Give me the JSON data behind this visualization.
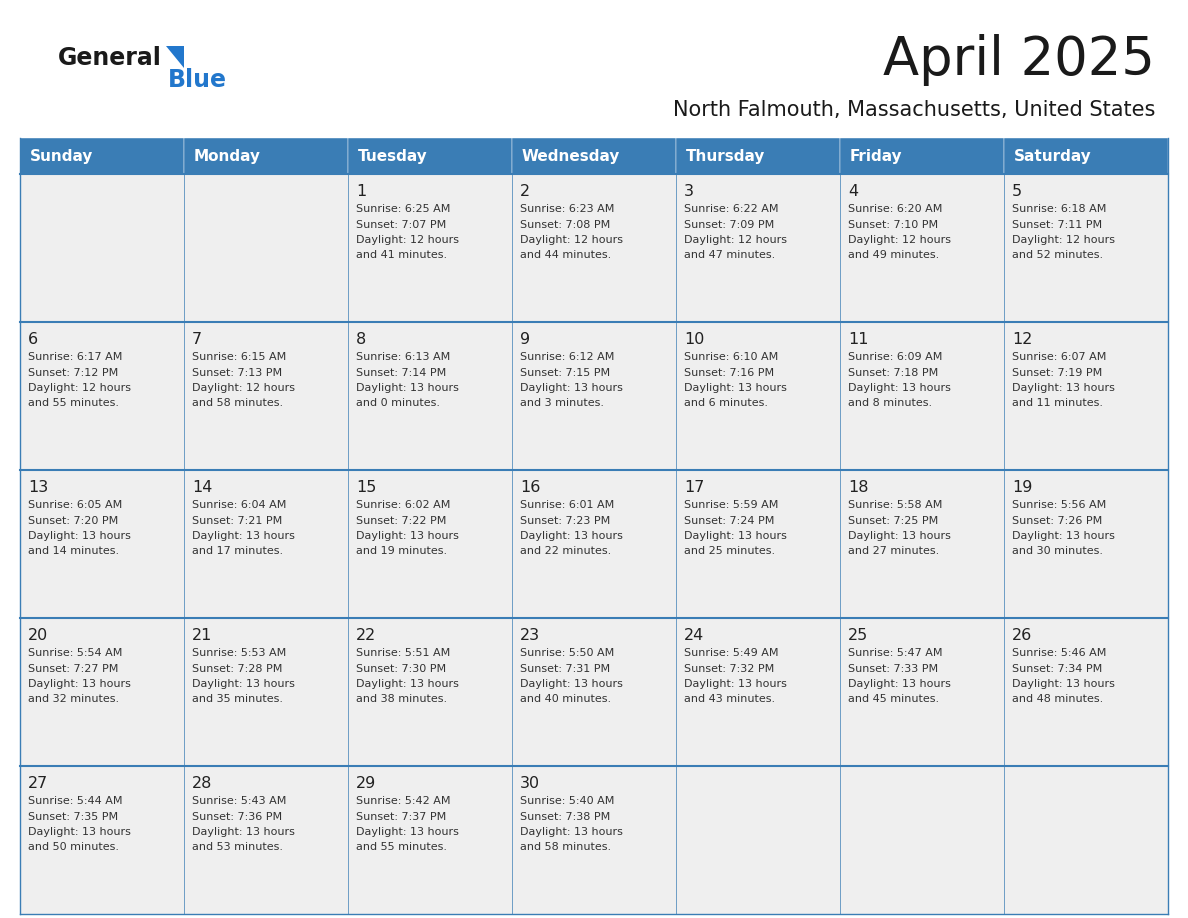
{
  "title": "April 2025",
  "subtitle": "North Falmouth, Massachusetts, United States",
  "header_bg_color": "#3a7db5",
  "header_text_color": "#ffffff",
  "day_names": [
    "Sunday",
    "Monday",
    "Tuesday",
    "Wednesday",
    "Thursday",
    "Friday",
    "Saturday"
  ],
  "cell_bg_color": "#efefef",
  "cell_border_color": "#3a7db5",
  "day_num_color": "#222222",
  "cell_text_color": "#333333",
  "title_color": "#1a1a1a",
  "subtitle_color": "#1a1a1a",
  "logo_general_color": "#1a1a1a",
  "logo_blue_color": "#2277cc",
  "weeks": [
    {
      "days": [
        {
          "date": null,
          "info": null
        },
        {
          "date": null,
          "info": null
        },
        {
          "date": "1",
          "info": "Sunrise: 6:25 AM\nSunset: 7:07 PM\nDaylight: 12 hours\nand 41 minutes."
        },
        {
          "date": "2",
          "info": "Sunrise: 6:23 AM\nSunset: 7:08 PM\nDaylight: 12 hours\nand 44 minutes."
        },
        {
          "date": "3",
          "info": "Sunrise: 6:22 AM\nSunset: 7:09 PM\nDaylight: 12 hours\nand 47 minutes."
        },
        {
          "date": "4",
          "info": "Sunrise: 6:20 AM\nSunset: 7:10 PM\nDaylight: 12 hours\nand 49 minutes."
        },
        {
          "date": "5",
          "info": "Sunrise: 6:18 AM\nSunset: 7:11 PM\nDaylight: 12 hours\nand 52 minutes."
        }
      ]
    },
    {
      "days": [
        {
          "date": "6",
          "info": "Sunrise: 6:17 AM\nSunset: 7:12 PM\nDaylight: 12 hours\nand 55 minutes."
        },
        {
          "date": "7",
          "info": "Sunrise: 6:15 AM\nSunset: 7:13 PM\nDaylight: 12 hours\nand 58 minutes."
        },
        {
          "date": "8",
          "info": "Sunrise: 6:13 AM\nSunset: 7:14 PM\nDaylight: 13 hours\nand 0 minutes."
        },
        {
          "date": "9",
          "info": "Sunrise: 6:12 AM\nSunset: 7:15 PM\nDaylight: 13 hours\nand 3 minutes."
        },
        {
          "date": "10",
          "info": "Sunrise: 6:10 AM\nSunset: 7:16 PM\nDaylight: 13 hours\nand 6 minutes."
        },
        {
          "date": "11",
          "info": "Sunrise: 6:09 AM\nSunset: 7:18 PM\nDaylight: 13 hours\nand 8 minutes."
        },
        {
          "date": "12",
          "info": "Sunrise: 6:07 AM\nSunset: 7:19 PM\nDaylight: 13 hours\nand 11 minutes."
        }
      ]
    },
    {
      "days": [
        {
          "date": "13",
          "info": "Sunrise: 6:05 AM\nSunset: 7:20 PM\nDaylight: 13 hours\nand 14 minutes."
        },
        {
          "date": "14",
          "info": "Sunrise: 6:04 AM\nSunset: 7:21 PM\nDaylight: 13 hours\nand 17 minutes."
        },
        {
          "date": "15",
          "info": "Sunrise: 6:02 AM\nSunset: 7:22 PM\nDaylight: 13 hours\nand 19 minutes."
        },
        {
          "date": "16",
          "info": "Sunrise: 6:01 AM\nSunset: 7:23 PM\nDaylight: 13 hours\nand 22 minutes."
        },
        {
          "date": "17",
          "info": "Sunrise: 5:59 AM\nSunset: 7:24 PM\nDaylight: 13 hours\nand 25 minutes."
        },
        {
          "date": "18",
          "info": "Sunrise: 5:58 AM\nSunset: 7:25 PM\nDaylight: 13 hours\nand 27 minutes."
        },
        {
          "date": "19",
          "info": "Sunrise: 5:56 AM\nSunset: 7:26 PM\nDaylight: 13 hours\nand 30 minutes."
        }
      ]
    },
    {
      "days": [
        {
          "date": "20",
          "info": "Sunrise: 5:54 AM\nSunset: 7:27 PM\nDaylight: 13 hours\nand 32 minutes."
        },
        {
          "date": "21",
          "info": "Sunrise: 5:53 AM\nSunset: 7:28 PM\nDaylight: 13 hours\nand 35 minutes."
        },
        {
          "date": "22",
          "info": "Sunrise: 5:51 AM\nSunset: 7:30 PM\nDaylight: 13 hours\nand 38 minutes."
        },
        {
          "date": "23",
          "info": "Sunrise: 5:50 AM\nSunset: 7:31 PM\nDaylight: 13 hours\nand 40 minutes."
        },
        {
          "date": "24",
          "info": "Sunrise: 5:49 AM\nSunset: 7:32 PM\nDaylight: 13 hours\nand 43 minutes."
        },
        {
          "date": "25",
          "info": "Sunrise: 5:47 AM\nSunset: 7:33 PM\nDaylight: 13 hours\nand 45 minutes."
        },
        {
          "date": "26",
          "info": "Sunrise: 5:46 AM\nSunset: 7:34 PM\nDaylight: 13 hours\nand 48 minutes."
        }
      ]
    },
    {
      "days": [
        {
          "date": "27",
          "info": "Sunrise: 5:44 AM\nSunset: 7:35 PM\nDaylight: 13 hours\nand 50 minutes."
        },
        {
          "date": "28",
          "info": "Sunrise: 5:43 AM\nSunset: 7:36 PM\nDaylight: 13 hours\nand 53 minutes."
        },
        {
          "date": "29",
          "info": "Sunrise: 5:42 AM\nSunset: 7:37 PM\nDaylight: 13 hours\nand 55 minutes."
        },
        {
          "date": "30",
          "info": "Sunrise: 5:40 AM\nSunset: 7:38 PM\nDaylight: 13 hours\nand 58 minutes."
        },
        {
          "date": null,
          "info": null
        },
        {
          "date": null,
          "info": null
        },
        {
          "date": null,
          "info": null
        }
      ]
    }
  ]
}
